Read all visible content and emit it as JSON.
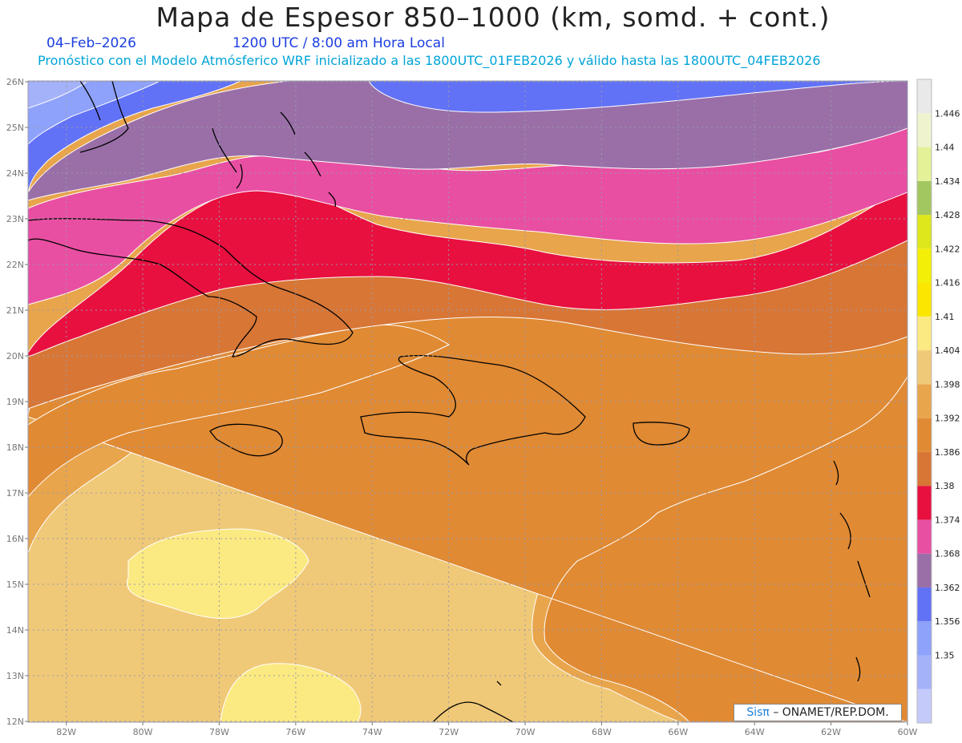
{
  "header": {
    "title": "Mapa de Espesor 850–1000 (km, somd. + cont.)",
    "date": "04–Feb–2026",
    "time": "1200 UTC / 8:00 am Hora Local",
    "forecast_note": "Pronóstico con el Modelo Atmósferico WRF inicializado a las 1800UTC_01FEB2026 y válido hasta las  1800UTC_04FEB2026"
  },
  "map": {
    "lat_labels": [
      "26N",
      "25N",
      "24N",
      "23N",
      "22N",
      "21N",
      "20N",
      "19N",
      "18N",
      "17N",
      "16N",
      "15N",
      "14N",
      "13N",
      "12N"
    ],
    "lon_labels": [
      "82W",
      "80W",
      "78W",
      "76W",
      "74W",
      "72W",
      "70W",
      "68W",
      "66W",
      "64W",
      "62W",
      "60W"
    ],
    "grid": true,
    "variable": "thickness 850-1000 hPa (km)"
  },
  "legend": {
    "levels": [
      {
        "label": "",
        "color": "#c4cafa"
      },
      {
        "label": "1.35",
        "color": "#a4b2fa"
      },
      {
        "label": "1.356",
        "color": "#8ea2fb"
      },
      {
        "label": "1.362",
        "color": "#6272f6"
      },
      {
        "label": "1.368",
        "color": "#9a6fa8"
      },
      {
        "label": "1.374",
        "color": "#e84fa2"
      },
      {
        "label": "1.38",
        "color": "#e8103f"
      },
      {
        "label": "1.386",
        "color": "#d87636"
      },
      {
        "label": "1.392",
        "color": "#e08a34"
      },
      {
        "label": "1.398",
        "color": "#e8a54c"
      },
      {
        "label": "1.404",
        "color": "#f0c978"
      },
      {
        "label": "1.41",
        "color": "#fbe982"
      },
      {
        "label": "1.416",
        "color": "#fae600"
      },
      {
        "label": "1.422",
        "color": "#f3ef07"
      },
      {
        "label": "1.428",
        "color": "#dde71c"
      },
      {
        "label": "1.434",
        "color": "#a3c760"
      },
      {
        "label": "1.44",
        "color": "#e5f197"
      },
      {
        "label": "1.446",
        "color": "#eff4cf"
      },
      {
        "label": "",
        "color": "#e9e9e9"
      }
    ]
  },
  "credit": {
    "brand": "Sisπ",
    "text": "– ONAMET/REP.DOM."
  }
}
